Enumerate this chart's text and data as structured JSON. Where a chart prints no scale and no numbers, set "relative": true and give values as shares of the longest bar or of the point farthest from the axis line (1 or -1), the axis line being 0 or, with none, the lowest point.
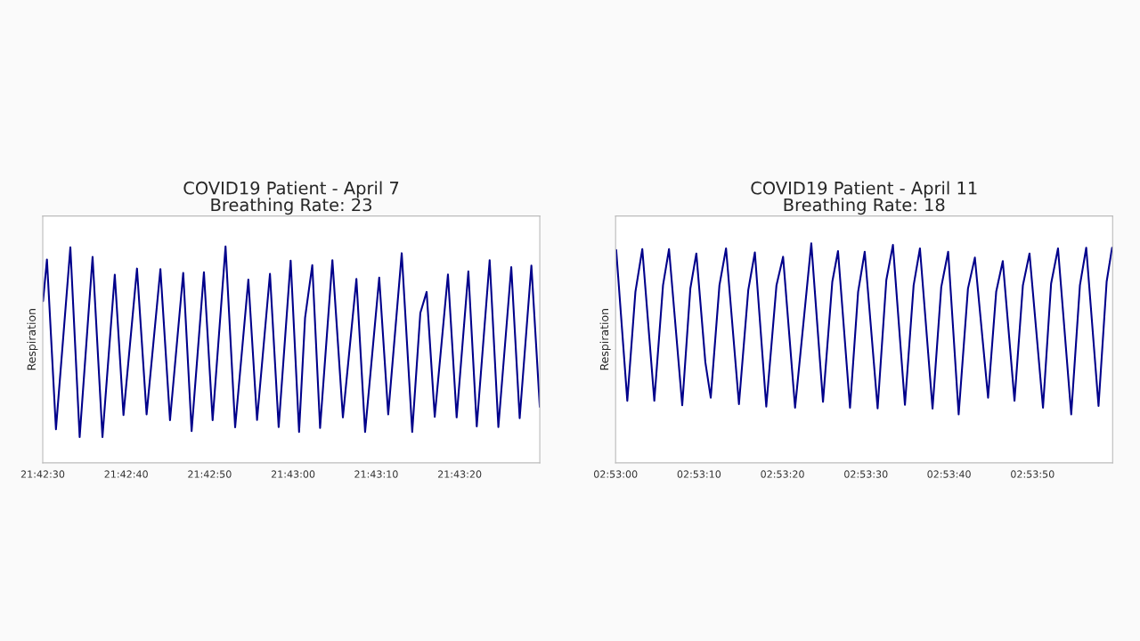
{
  "chart_data": [
    {
      "type": "line",
      "title": "COVID19 Patient - April 7",
      "subtitle": "Breathing Rate: 23",
      "ylabel": "Respiration",
      "relative": true,
      "grid": false,
      "legend": false,
      "xlim": [
        21.70833,
        21.72489
      ],
      "xticks": [
        {
          "value": 21.70833,
          "label": "21:42:30"
        },
        {
          "value": 21.71111,
          "label": "21:42:40"
        },
        {
          "value": 21.71389,
          "label": "21:42:50"
        },
        {
          "value": 21.71667,
          "label": "21:43:00"
        },
        {
          "value": 21.71944,
          "label": "21:43:10"
        },
        {
          "value": 21.72222,
          "label": "21:43:20"
        }
      ],
      "series": [
        {
          "color": "#00008b",
          "x": [
            21.70834,
            21.70847,
            21.70877,
            21.70925,
            21.70956,
            21.70999,
            21.71032,
            21.71073,
            21.71102,
            21.71147,
            21.71179,
            21.71225,
            21.71257,
            21.71301,
            21.71329,
            21.7137,
            21.71399,
            21.71442,
            21.71474,
            21.71518,
            21.71547,
            21.7159,
            21.71619,
            21.71659,
            21.71687,
            21.71707,
            21.71731,
            21.71757,
            21.71798,
            21.71833,
            21.71878,
            21.71907,
            21.71954,
            21.71984,
            21.72029,
            21.72064,
            21.72091,
            21.72112,
            21.72139,
            21.72183,
            21.72212,
            21.72251,
            21.72279,
            21.72322,
            21.72351,
            21.72394,
            21.72422,
            21.72461,
            21.72489
          ],
          "values": [
            0.748,
            0.94,
            0.155,
            0.996,
            0.119,
            0.952,
            0.119,
            0.87,
            0.221,
            0.898,
            0.224,
            0.895,
            0.197,
            0.878,
            0.147,
            0.881,
            0.197,
            1,
            0.164,
            0.847,
            0.198,
            0.874,
            0.165,
            0.935,
            0.143,
            0.671,
            0.914,
            0.161,
            0.937,
            0.21,
            0.85,
            0.143,
            0.856,
            0.224,
            0.969,
            0.143,
            0.693,
            0.79,
            0.213,
            0.871,
            0.21,
            0.885,
            0.168,
            0.937,
            0.165,
            0.905,
            0.206,
            0.912,
            0.259
          ]
        }
      ]
    },
    {
      "type": "line",
      "title": "COVID19 Patient - April 11",
      "subtitle": "Breathing Rate: 18",
      "ylabel": "Respiration",
      "relative": true,
      "grid": false,
      "legend": false,
      "xlim": [
        2.88333,
        2.89989
      ],
      "xticks": [
        {
          "value": 2.88333,
          "label": "02:53:00"
        },
        {
          "value": 2.88611,
          "label": "02:53:10"
        },
        {
          "value": 2.88889,
          "label": "02:53:20"
        },
        {
          "value": 2.89167,
          "label": "02:53:30"
        },
        {
          "value": 2.89444,
          "label": "02:53:40"
        },
        {
          "value": 2.89722,
          "label": "02:53:50"
        }
      ],
      "series": [
        {
          "color": "#00008b",
          "x": [
            2.88335,
            2.88372,
            2.88399,
            2.88422,
            2.88462,
            2.88491,
            2.88511,
            2.88555,
            2.88582,
            2.88602,
            2.88632,
            2.8865,
            2.88679,
            2.88701,
            2.88744,
            2.88775,
            2.88797,
            2.88835,
            2.88869,
            2.88891,
            2.88931,
            2.88985,
            2.89024,
            2.89055,
            2.89074,
            2.89114,
            2.89141,
            2.89163,
            2.89206,
            2.89235,
            2.89257,
            2.89297,
            2.89326,
            2.89347,
            2.89389,
            2.89418,
            2.89441,
            2.89476,
            2.89507,
            2.8953,
            2.89574,
            2.89601,
            2.89623,
            2.89662,
            2.8969,
            2.89712,
            2.89757,
            2.89784,
            2.89807,
            2.89851,
            2.8988,
            2.89901,
            2.89942,
            2.89969,
            2.89987
          ],
          "values": [
            0.97,
            0.283,
            0.779,
            0.974,
            0.283,
            0.809,
            0.974,
            0.262,
            0.794,
            0.954,
            0.458,
            0.297,
            0.809,
            0.977,
            0.267,
            0.787,
            0.959,
            0.256,
            0.809,
            0.939,
            0.251,
            1,
            0.278,
            0.825,
            0.965,
            0.251,
            0.779,
            0.962,
            0.248,
            0.833,
            0.993,
            0.264,
            0.809,
            0.977,
            0.247,
            0.801,
            0.962,
            0.221,
            0.794,
            0.935,
            0.297,
            0.779,
            0.919,
            0.283,
            0.809,
            0.954,
            0.251,
            0.817,
            0.977,
            0.221,
            0.809,
            0.98,
            0.259,
            0.825,
            0.98
          ]
        }
      ]
    }
  ]
}
